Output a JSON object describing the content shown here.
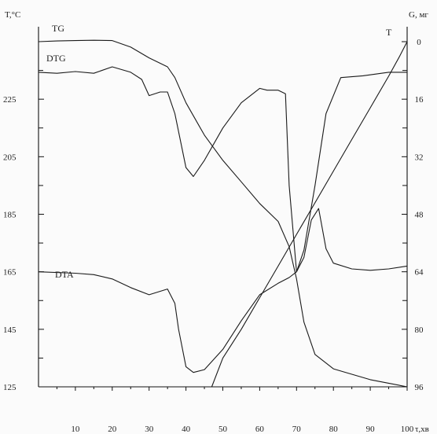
{
  "chart_data": {
    "type": "line",
    "title": "",
    "xlabel": "τ,хв",
    "ylabel_left": "T,°C",
    "ylabel_right": "G, мг",
    "xlim": [
      0,
      100
    ],
    "x_ticks": [
      10,
      20,
      30,
      40,
      50,
      60,
      70,
      80,
      90,
      100
    ],
    "y_left_ticks": [
      125,
      145,
      165,
      185,
      205,
      225
    ],
    "y_left_lim": [
      125,
      245
    ],
    "y_right_ticks": [
      0,
      16,
      32,
      48,
      64,
      80,
      96
    ],
    "y_right_lim": [
      0,
      96
    ],
    "grid": false,
    "series": [
      {
        "name": "TG",
        "axis": "right",
        "x": [
          0,
          5,
          10,
          15,
          20,
          25,
          30,
          35,
          37,
          40,
          45,
          50,
          55,
          60,
          65,
          68,
          70,
          72,
          75,
          80,
          85,
          90,
          95,
          100
        ],
        "y": [
          0,
          -0.2,
          -0.3,
          -0.4,
          -0.3,
          1.5,
          4.5,
          7,
          10,
          17,
          26,
          33,
          39,
          45,
          50,
          57,
          66,
          78,
          87,
          91,
          92.5,
          94,
          95,
          96
        ]
      },
      {
        "name": "DTG",
        "axis": "right",
        "x": [
          0,
          5,
          10,
          15,
          20,
          25,
          28,
          30,
          33,
          35,
          37,
          40,
          42,
          45,
          50,
          55,
          60,
          62,
          65,
          67,
          68,
          70,
          72,
          75,
          78,
          82,
          88,
          95,
          100
        ],
        "y": [
          8.5,
          8.8,
          8.3,
          8.8,
          7,
          8.5,
          10.5,
          15,
          14,
          14,
          20,
          35,
          37.5,
          33,
          24,
          17,
          13,
          13.5,
          13.5,
          14.5,
          40,
          64,
          58,
          40,
          20,
          10,
          9.5,
          8.5,
          8.5
        ]
      },
      {
        "name": "DTA",
        "axis": "left",
        "x": [
          0,
          10,
          15,
          20,
          25,
          30,
          35,
          37,
          38,
          40,
          42,
          45,
          50,
          55,
          60,
          65,
          68,
          70,
          72,
          74,
          76,
          78,
          80,
          85,
          90,
          95,
          100
        ],
        "y": [
          165,
          164.5,
          164,
          162.5,
          159.5,
          157,
          159,
          154,
          145,
          132,
          130,
          131,
          138,
          148,
          157,
          161,
          163,
          165,
          170,
          183,
          187,
          173,
          168,
          166,
          165.5,
          166,
          167
        ]
      },
      {
        "name": "T",
        "axis": "left",
        "x": [
          47,
          50,
          55,
          60,
          65,
          70,
          75,
          80,
          85,
          90,
          95,
          98,
          100
        ],
        "y": [
          125,
          135,
          145,
          156,
          167,
          178,
          189,
          200,
          211,
          222,
          233,
          240,
          245
        ]
      }
    ]
  }
}
